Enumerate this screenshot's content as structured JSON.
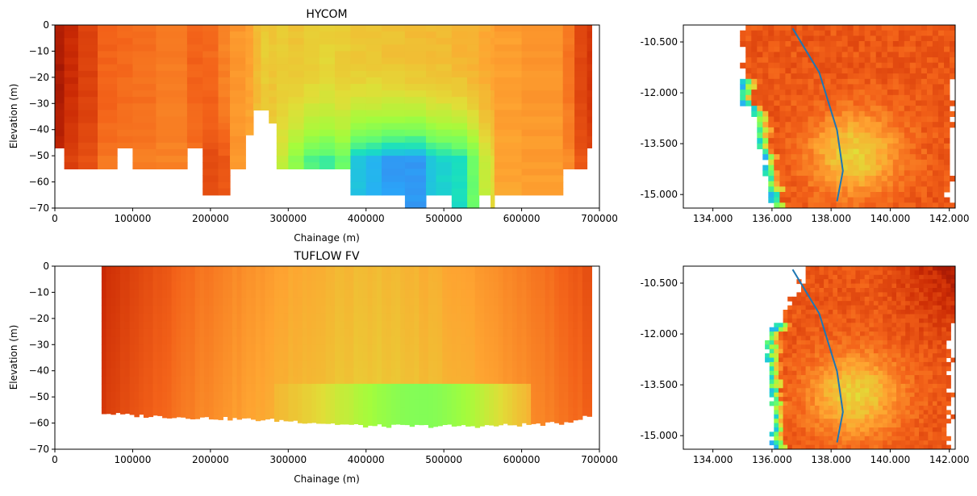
{
  "figure": {
    "background": "#ffffff"
  },
  "chart_data": [
    {
      "type": "heatmap",
      "title": "HYCOM",
      "xlabel": "Chainage (m)",
      "ylabel": "Elevation (m)",
      "xlim": [
        0,
        700000
      ],
      "ylim": [
        -70,
        0
      ],
      "xticks": [
        0,
        100000,
        200000,
        300000,
        400000,
        500000,
        600000,
        700000
      ],
      "xtick_labels": [
        "0",
        "100000",
        "200000",
        "300000",
        "400000",
        "500000",
        "600000",
        "700000"
      ],
      "yticks": [
        0,
        -10,
        -20,
        -30,
        -40,
        -50,
        -60,
        -70
      ],
      "ytick_labels": [
        "0",
        "−10",
        "−20",
        "−30",
        "−40",
        "−50",
        "−60",
        "−70"
      ],
      "colormap": "turbo",
      "columns": [
        {
          "x0": 0,
          "x1": 12000,
          "bottom": -47,
          "surface": 0.94,
          "deep": 0.9
        },
        {
          "x0": 12000,
          "x1": 30000,
          "bottom": -55,
          "surface": 0.9,
          "deep": 0.86
        },
        {
          "x0": 30000,
          "x1": 55000,
          "bottom": -55,
          "surface": 0.86,
          "deep": 0.83
        },
        {
          "x0": 55000,
          "x1": 80000,
          "bottom": -55,
          "surface": 0.8,
          "deep": 0.77
        },
        {
          "x0": 80000,
          "x1": 100000,
          "bottom": -47,
          "surface": 0.79,
          "deep": 0.76
        },
        {
          "x0": 100000,
          "x1": 130000,
          "bottom": -55,
          "surface": 0.78,
          "deep": 0.76
        },
        {
          "x0": 130000,
          "x1": 170000,
          "bottom": -55,
          "surface": 0.76,
          "deep": 0.75
        },
        {
          "x0": 170000,
          "x1": 190000,
          "bottom": -47,
          "surface": 0.8,
          "deep": 0.78
        },
        {
          "x0": 190000,
          "x1": 210000,
          "bottom": -65,
          "surface": 0.79,
          "deep": 0.84
        },
        {
          "x0": 210000,
          "x1": 225000,
          "bottom": -65,
          "surface": 0.75,
          "deep": 0.82
        },
        {
          "x0": 225000,
          "x1": 245000,
          "bottom": -55,
          "surface": 0.72,
          "deep": 0.72
        },
        {
          "x0": 245000,
          "x1": 255000,
          "bottom": -42,
          "surface": 0.7,
          "deep": 0.7
        },
        {
          "x0": 255000,
          "x1": 265000,
          "bottom": -33,
          "surface": 0.66,
          "deep": 0.66
        },
        {
          "x0": 265000,
          "x1": 275000,
          "bottom": -33,
          "surface": 0.63,
          "deep": 0.63
        },
        {
          "x0": 275000,
          "x1": 285000,
          "bottom": -38,
          "surface": 0.64,
          "deep": 0.64
        },
        {
          "x0": 285000,
          "x1": 300000,
          "bottom": -55,
          "surface": 0.63,
          "deep": 0.55
        },
        {
          "x0": 300000,
          "x1": 320000,
          "bottom": -55,
          "surface": 0.64,
          "deep": 0.46
        },
        {
          "x0": 320000,
          "x1": 340000,
          "bottom": -55,
          "surface": 0.63,
          "deep": 0.37
        },
        {
          "x0": 340000,
          "x1": 360000,
          "bottom": -55,
          "surface": 0.62,
          "deep": 0.35
        },
        {
          "x0": 360000,
          "x1": 380000,
          "bottom": -55,
          "surface": 0.63,
          "deep": 0.4
        },
        {
          "x0": 380000,
          "x1": 400000,
          "bottom": -65,
          "surface": 0.64,
          "deep": 0.25
        },
        {
          "x0": 400000,
          "x1": 420000,
          "bottom": -65,
          "surface": 0.64,
          "deep": 0.22
        },
        {
          "x0": 420000,
          "x1": 450000,
          "bottom": -65,
          "surface": 0.65,
          "deep": 0.18
        },
        {
          "x0": 450000,
          "x1": 477000,
          "bottom": -70,
          "surface": 0.66,
          "deep": 0.17
        },
        {
          "x0": 477000,
          "x1": 490000,
          "bottom": -65,
          "surface": 0.66,
          "deep": 0.25
        },
        {
          "x0": 490000,
          "x1": 510000,
          "bottom": -65,
          "surface": 0.66,
          "deep": 0.28
        },
        {
          "x0": 510000,
          "x1": 530000,
          "bottom": -70,
          "surface": 0.67,
          "deep": 0.3
        },
        {
          "x0": 530000,
          "x1": 545000,
          "bottom": -70,
          "surface": 0.68,
          "deep": 0.4
        },
        {
          "x0": 545000,
          "x1": 560000,
          "bottom": -65,
          "surface": 0.69,
          "deep": 0.55
        },
        {
          "x0": 560000,
          "x1": 565000,
          "bottom": -70,
          "surface": 0.7,
          "deep": 0.6
        },
        {
          "x0": 565000,
          "x1": 600000,
          "bottom": -65,
          "surface": 0.71,
          "deep": 0.7
        },
        {
          "x0": 600000,
          "x1": 653000,
          "bottom": -65,
          "surface": 0.72,
          "deep": 0.71
        },
        {
          "x0": 653000,
          "x1": 668000,
          "bottom": -55,
          "surface": 0.77,
          "deep": 0.74
        },
        {
          "x0": 668000,
          "x1": 684000,
          "bottom": -55,
          "surface": 0.85,
          "deep": 0.82
        },
        {
          "x0": 684000,
          "x1": 690000,
          "bottom": -47,
          "surface": 0.88,
          "deep": 0.85
        }
      ]
    },
    {
      "type": "heatmap",
      "xlim": [
        133.0,
        142.2
      ],
      "ylim": [
        -15.4,
        -10.0
      ],
      "xticks": [
        134.0,
        136.0,
        138.0,
        140.0,
        142.0
      ],
      "xtick_labels": [
        "134.000",
        "136.000",
        "138.000",
        "140.000",
        "142.000"
      ],
      "yticks": [
        -10.5,
        -12.0,
        -13.5,
        -15.0
      ],
      "ytick_labels": [
        "-10.500",
        "-12.000",
        "-13.500",
        "-15.000"
      ],
      "colormap": "turbo",
      "line_color": "#1f77b4",
      "transect": [
        [
          136.7,
          -10.1
        ],
        [
          137.6,
          -11.4
        ],
        [
          138.2,
          -13.1
        ],
        [
          138.4,
          -14.3
        ],
        [
          138.2,
          -15.2
        ]
      ]
    },
    {
      "type": "heatmap",
      "title": "TUFLOW FV",
      "xlabel": "Chainage (m)",
      "ylabel": "Elevation (m)",
      "xlim": [
        0,
        700000
      ],
      "ylim": [
        -70,
        0
      ],
      "xticks": [
        0,
        100000,
        200000,
        300000,
        400000,
        500000,
        600000,
        700000
      ],
      "xtick_labels": [
        "0",
        "100000",
        "200000",
        "300000",
        "400000",
        "500000",
        "600000",
        "700000"
      ],
      "yticks": [
        0,
        -10,
        -20,
        -30,
        -40,
        -50,
        -60,
        -70
      ],
      "ytick_labels": [
        "0",
        "−10",
        "−20",
        "−30",
        "−40",
        "−50",
        "−60",
        "−70"
      ],
      "colormap": "turbo",
      "x_start": 60000,
      "x_end": 690000,
      "bottom_profile": [
        [
          60000,
          -56
        ],
        [
          100000,
          -57
        ],
        [
          150000,
          -57.5
        ],
        [
          200000,
          -58
        ],
        [
          250000,
          -58.5
        ],
        [
          300000,
          -59
        ],
        [
          350000,
          -60
        ],
        [
          400000,
          -61
        ],
        [
          450000,
          -61
        ],
        [
          500000,
          -61
        ],
        [
          550000,
          -61
        ],
        [
          600000,
          -60.5
        ],
        [
          650000,
          -60
        ],
        [
          690000,
          -57
        ]
      ]
    },
    {
      "type": "heatmap",
      "xlim": [
        133.0,
        142.2
      ],
      "ylim": [
        -15.4,
        -10.0
      ],
      "xticks": [
        134.0,
        136.0,
        138.0,
        140.0,
        142.0
      ],
      "xtick_labels": [
        "134.000",
        "136.000",
        "138.000",
        "140.000",
        "142.000"
      ],
      "yticks": [
        -10.5,
        -12.0,
        -13.5,
        -15.0
      ],
      "ytick_labels": [
        "-10.500",
        "-12.000",
        "-13.500",
        "-15.000"
      ],
      "colormap": "turbo",
      "line_color": "#1f77b4",
      "transect": [
        [
          136.7,
          -10.1
        ],
        [
          137.6,
          -11.4
        ],
        [
          138.2,
          -13.1
        ],
        [
          138.4,
          -14.3
        ],
        [
          138.2,
          -15.2
        ]
      ]
    }
  ]
}
